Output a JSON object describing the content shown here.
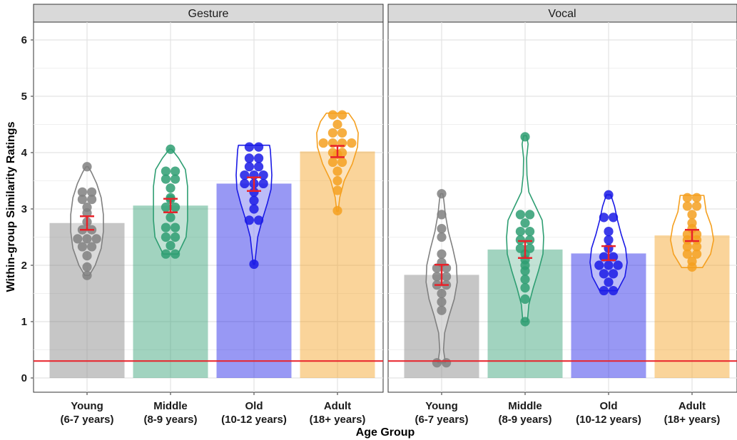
{
  "chart_data": {
    "type": "bar",
    "xlabel": "Age Group",
    "ylabel": "Within-group Similarity Ratings",
    "ylim": [
      0,
      6.25
    ],
    "yticks": [
      0,
      1,
      2,
      3,
      4,
      5,
      6
    ],
    "grid": true,
    "reference_line": {
      "y": 0.3,
      "color": "#e8222a"
    },
    "categories": [
      {
        "line1": "Young",
        "line2": "(6-7 years)",
        "color": "#808080"
      },
      {
        "line1": "Middle",
        "line2": "(8-9 years)",
        "color": "#2e9e72"
      },
      {
        "line1": "Old",
        "line2": "(10-12 years)",
        "color": "#1a1ae6"
      },
      {
        "line1": "Adult",
        "line2": "(18+ years)",
        "color": "#f5a020"
      }
    ],
    "panels": [
      {
        "strip": "Gesture",
        "groups": [
          {
            "mean": 2.75,
            "se_low": 2.63,
            "se_high": 2.87,
            "violin": {
              "min": 1.82,
              "max": 3.75,
              "shape": [
                [
                  1.82,
                  0.06
                ],
                [
                  2.0,
                  0.22
                ],
                [
                  2.3,
                  0.38
                ],
                [
                  2.6,
                  0.44
                ],
                [
                  2.9,
                  0.44
                ],
                [
                  3.2,
                  0.38
                ],
                [
                  3.45,
                  0.26
                ],
                [
                  3.65,
                  0.12
                ],
                [
                  3.75,
                  0.03
                ]
              ]
            },
            "points": [
              1.82,
              1.97,
              2.17,
              2.33,
              2.33,
              2.47,
              2.47,
              2.47,
              2.63,
              2.63,
              2.77,
              2.93,
              3.03,
              3.17,
              3.17,
              3.3,
              3.3,
              3.75
            ]
          },
          {
            "mean": 3.06,
            "se_low": 2.94,
            "se_high": 3.18,
            "violin": {
              "min": 2.2,
              "max": 4.06,
              "shape": [
                [
                  2.2,
                  0.2
                ],
                [
                  2.5,
                  0.42
                ],
                [
                  2.8,
                  0.46
                ],
                [
                  3.1,
                  0.46
                ],
                [
                  3.4,
                  0.46
                ],
                [
                  3.7,
                  0.4
                ],
                [
                  3.9,
                  0.22
                ],
                [
                  4.06,
                  0.03
                ]
              ]
            },
            "points": [
              2.2,
              2.2,
              2.35,
              2.5,
              2.5,
              2.67,
              2.67,
              2.85,
              3.03,
              3.03,
              3.17,
              3.2,
              3.37,
              3.53,
              3.53,
              3.67,
              3.67,
              4.06
            ]
          },
          {
            "mean": 3.45,
            "se_low": 3.32,
            "se_high": 3.56,
            "violin": {
              "min": 2.02,
              "max": 4.13,
              "shape": [
                [
                  2.02,
                  0.02
                ],
                [
                  2.2,
                  0.05
                ],
                [
                  2.5,
                  0.1
                ],
                [
                  2.8,
                  0.22
                ],
                [
                  3.1,
                  0.36
                ],
                [
                  3.35,
                  0.46
                ],
                [
                  3.6,
                  0.48
                ],
                [
                  3.85,
                  0.46
                ],
                [
                  4.05,
                  0.44
                ],
                [
                  4.13,
                  0.42
                ]
              ]
            },
            "points": [
              2.02,
              2.8,
              2.8,
              3.0,
              3.15,
              3.3,
              3.45,
              3.45,
              3.45,
              3.6,
              3.6,
              3.6,
              3.75,
              3.75,
              3.9,
              3.9,
              4.1,
              4.1
            ]
          },
          {
            "mean": 4.02,
            "se_low": 3.92,
            "se_high": 4.12,
            "violin": {
              "min": 2.96,
              "max": 4.7,
              "shape": [
                [
                  2.96,
                  0.02
                ],
                [
                  3.2,
                  0.06
                ],
                [
                  3.5,
                  0.18
                ],
                [
                  3.8,
                  0.4
                ],
                [
                  4.1,
                  0.54
                ],
                [
                  4.35,
                  0.56
                ],
                [
                  4.55,
                  0.46
                ],
                [
                  4.7,
                  0.3
                ]
              ]
            },
            "points": [
              2.97,
              3.33,
              3.5,
              3.67,
              3.83,
              3.83,
              3.97,
              4.0,
              4.0,
              4.17,
              4.17,
              4.17,
              4.17,
              4.35,
              4.35,
              4.5,
              4.67,
              4.67
            ]
          }
        ]
      },
      {
        "strip": "Vocal",
        "groups": [
          {
            "mean": 1.83,
            "se_low": 1.65,
            "se_high": 2.01,
            "violin": {
              "min": 0.27,
              "max": 3.27,
              "shape": [
                [
                  0.27,
                  0.1
                ],
                [
                  0.5,
                  0.05
                ],
                [
                  0.8,
                  0.08
                ],
                [
                  1.1,
                  0.2
                ],
                [
                  1.4,
                  0.34
                ],
                [
                  1.7,
                  0.42
                ],
                [
                  2.0,
                  0.4
                ],
                [
                  2.3,
                  0.3
                ],
                [
                  2.6,
                  0.18
                ],
                [
                  2.9,
                  0.1
                ],
                [
                  3.15,
                  0.06
                ],
                [
                  3.27,
                  0.03
                ]
              ]
            },
            "points": [
              0.27,
              0.27,
              1.2,
              1.35,
              1.5,
              1.65,
              1.65,
              1.8,
              1.8,
              1.95,
              1.95,
              2.05,
              2.2,
              2.5,
              2.65,
              2.9,
              3.27
            ]
          },
          {
            "mean": 2.28,
            "se_low": 2.13,
            "se_high": 2.43,
            "violin": {
              "min": 1.0,
              "max": 4.3,
              "shape": [
                [
                  1.0,
                  0.06
                ],
                [
                  1.3,
                  0.1
                ],
                [
                  1.6,
                  0.22
                ],
                [
                  1.9,
                  0.36
                ],
                [
                  2.2,
                  0.48
                ],
                [
                  2.5,
                  0.5
                ],
                [
                  2.8,
                  0.46
                ],
                [
                  3.05,
                  0.28
                ],
                [
                  3.3,
                  0.1
                ],
                [
                  3.6,
                  0.05
                ],
                [
                  3.9,
                  0.04
                ],
                [
                  4.15,
                  0.08
                ],
                [
                  4.3,
                  0.04
                ]
              ]
            },
            "points": [
              1.0,
              1.4,
              1.6,
              1.75,
              1.9,
              2.0,
              2.1,
              2.2,
              2.3,
              2.3,
              2.45,
              2.45,
              2.6,
              2.6,
              2.75,
              2.9,
              2.9,
              4.28
            ]
          },
          {
            "mean": 2.21,
            "se_low": 2.09,
            "se_high": 2.34,
            "violin": {
              "min": 1.55,
              "max": 3.25,
              "shape": [
                [
                  1.55,
                  0.24
                ],
                [
                  1.8,
                  0.44
                ],
                [
                  2.05,
                  0.5
                ],
                [
                  2.3,
                  0.46
                ],
                [
                  2.55,
                  0.34
                ],
                [
                  2.8,
                  0.24
                ],
                [
                  3.05,
                  0.16
                ],
                [
                  3.25,
                  0.06
                ]
              ]
            },
            "points": [
              1.55,
              1.55,
              1.7,
              1.85,
              1.85,
              2.0,
              2.0,
              2.0,
              2.15,
              2.15,
              2.3,
              2.45,
              2.6,
              2.85,
              2.85,
              3.25
            ]
          },
          {
            "mean": 2.53,
            "se_low": 2.43,
            "se_high": 2.63,
            "violin": {
              "min": 1.96,
              "max": 3.24,
              "shape": [
                [
                  1.96,
                  0.28
                ],
                [
                  2.2,
                  0.5
                ],
                [
                  2.45,
                  0.58
                ],
                [
                  2.7,
                  0.52
                ],
                [
                  2.95,
                  0.38
                ],
                [
                  3.24,
                  0.32
                ]
              ]
            },
            "points": [
              1.97,
              2.07,
              2.2,
              2.2,
              2.33,
              2.33,
              2.45,
              2.45,
              2.55,
              2.55,
              2.65,
              2.75,
              2.9,
              3.05,
              3.05,
              3.2,
              3.2
            ]
          }
        ]
      }
    ]
  }
}
